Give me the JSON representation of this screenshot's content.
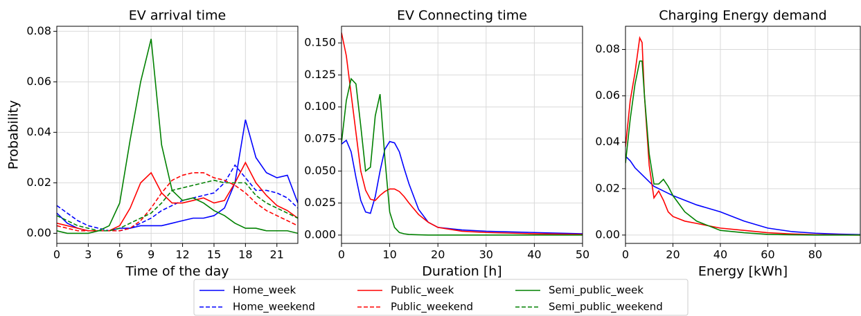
{
  "chart_data": [
    {
      "type": "line",
      "title": "EV arrival time",
      "xlabel": "Time of the day",
      "ylabel": "Probability",
      "grid": true,
      "legend": "bottom",
      "x": [
        0,
        1,
        2,
        3,
        4,
        5,
        6,
        7,
        8,
        9,
        10,
        11,
        12,
        13,
        14,
        15,
        16,
        17,
        18,
        19,
        20,
        21,
        22,
        23
      ],
      "xlim": [
        0,
        23
      ],
      "xticks": [
        0,
        3,
        6,
        9,
        12,
        15,
        18,
        21
      ],
      "ylim": [
        -0.004,
        0.082
      ],
      "yticks": [
        {
          "value": 0,
          "label": "0.00"
        },
        {
          "value": 0.02,
          "label": "0.02"
        },
        {
          "value": 0.04,
          "label": "0.04"
        },
        {
          "value": 0.06,
          "label": "0.06"
        },
        {
          "value": 0.08,
          "label": "0.08"
        }
      ],
      "series": [
        {
          "name": "Home_week",
          "color": "#0000ff",
          "dash": false,
          "values": [
            0.008,
            0.004,
            0.002,
            0.001,
            0.001,
            0.001,
            0.002,
            0.002,
            0.003,
            0.003,
            0.003,
            0.004,
            0.005,
            0.006,
            0.006,
            0.007,
            0.01,
            0.02,
            0.045,
            0.03,
            0.024,
            0.022,
            0.023,
            0.012
          ]
        },
        {
          "name": "Home_weekend",
          "color": "#0000ff",
          "dash": true,
          "values": [
            0.011,
            0.008,
            0.005,
            0.003,
            0.002,
            0.001,
            0.001,
            0.002,
            0.004,
            0.006,
            0.009,
            0.011,
            0.013,
            0.014,
            0.015,
            0.016,
            0.02,
            0.027,
            0.022,
            0.017,
            0.017,
            0.016,
            0.014,
            0.01
          ]
        },
        {
          "name": "Public_week",
          "color": "#ff0000",
          "dash": false,
          "values": [
            0.004,
            0.003,
            0.002,
            0.001,
            0.001,
            0.001,
            0.003,
            0.01,
            0.02,
            0.024,
            0.016,
            0.012,
            0.012,
            0.013,
            0.014,
            0.012,
            0.013,
            0.02,
            0.028,
            0.02,
            0.015,
            0.011,
            0.009,
            0.006
          ]
        },
        {
          "name": "Public_weekend",
          "color": "#ff0000",
          "dash": true,
          "values": [
            0.003,
            0.002,
            0.001,
            0.001,
            0.001,
            0.001,
            0.001,
            0.002,
            0.005,
            0.01,
            0.016,
            0.021,
            0.023,
            0.024,
            0.024,
            0.022,
            0.021,
            0.019,
            0.016,
            0.012,
            0.009,
            0.007,
            0.005,
            0.003
          ]
        },
        {
          "name": "Semi_public_week",
          "color": "#008000",
          "dash": false,
          "values": [
            0.001,
            0,
            0,
            0,
            0.001,
            0.003,
            0.012,
            0.037,
            0.06,
            0.077,
            0.035,
            0.017,
            0.013,
            0.014,
            0.012,
            0.009,
            0.007,
            0.004,
            0.002,
            0.002,
            0.001,
            0.001,
            0.001,
            0
          ]
        },
        {
          "name": "Semi_public_weekend",
          "color": "#008000",
          "dash": true,
          "values": [
            0.007,
            0.005,
            0.003,
            0.002,
            0.001,
            0.001,
            0.002,
            0.004,
            0.006,
            0.008,
            0.012,
            0.017,
            0.018,
            0.019,
            0.02,
            0.021,
            0.02,
            0.02,
            0.02,
            0.015,
            0.012,
            0.01,
            0.008,
            0.006
          ]
        }
      ]
    },
    {
      "type": "line",
      "title": "EV Connecting time",
      "xlabel": "Duration [h]",
      "grid": true,
      "x": [
        0,
        1,
        2,
        3,
        4,
        5,
        6,
        7,
        8,
        9,
        10,
        11,
        12,
        13,
        14,
        16,
        18,
        20,
        25,
        30,
        40,
        50
      ],
      "xlim": [
        0,
        50
      ],
      "xticks": [
        0,
        10,
        20,
        30,
        40,
        50
      ],
      "ylim": [
        -0.0065,
        0.163
      ],
      "yticks": [
        {
          "value": 0,
          "label": "0.000"
        },
        {
          "value": 0.025,
          "label": "0.025"
        },
        {
          "value": 0.05,
          "label": "0.050"
        },
        {
          "value": 0.075,
          "label": "0.075"
        },
        {
          "value": 0.1,
          "label": "0.100"
        },
        {
          "value": 0.125,
          "label": "0.125"
        },
        {
          "value": 0.15,
          "label": "0.150"
        }
      ],
      "series": [
        {
          "color": "#0000ff",
          "dash": false,
          "values": [
            0.071,
            0.074,
            0.065,
            0.045,
            0.027,
            0.018,
            0.017,
            0.03,
            0.05,
            0.067,
            0.073,
            0.072,
            0.065,
            0.052,
            0.04,
            0.02,
            0.01,
            0.006,
            0.004,
            0.003,
            0.002,
            0.001
          ]
        },
        {
          "color": "#ff0000",
          "dash": false,
          "values": [
            0.158,
            0.14,
            0.11,
            0.08,
            0.05,
            0.035,
            0.028,
            0.027,
            0.031,
            0.034,
            0.036,
            0.036,
            0.034,
            0.03,
            0.025,
            0.016,
            0.01,
            0.006,
            0.003,
            0.002,
            0.001,
            0.0005
          ]
        },
        {
          "color": "#008000",
          "dash": false,
          "values": [
            0.072,
            0.105,
            0.122,
            0.118,
            0.085,
            0.05,
            0.053,
            0.093,
            0.11,
            0.06,
            0.018,
            0.006,
            0.002,
            0.001,
            0.0005,
            0.0002,
            0,
            0,
            0,
            0,
            0,
            0
          ]
        }
      ]
    },
    {
      "type": "line",
      "title": "Charging Energy demand",
      "xlabel": "Energy [kWh]",
      "grid": true,
      "x": [
        0,
        2,
        4,
        6,
        7,
        8,
        10,
        12,
        14,
        16,
        18,
        20,
        25,
        30,
        40,
        50,
        60,
        70,
        80,
        90,
        99
      ],
      "xlim": [
        0,
        99
      ],
      "xticks": [
        0,
        20,
        40,
        60,
        80
      ],
      "ylim": [
        -0.0036,
        0.09
      ],
      "yticks": [
        {
          "value": 0,
          "label": "0.00"
        },
        {
          "value": 0.02,
          "label": "0.02"
        },
        {
          "value": 0.04,
          "label": "0.04"
        },
        {
          "value": 0.06,
          "label": "0.06"
        },
        {
          "value": 0.08,
          "label": "0.08"
        }
      ],
      "series": [
        {
          "color": "#0000ff",
          "dash": false,
          "values": [
            0.034,
            0.032,
            0.029,
            0.027,
            0.026,
            0.025,
            0.023,
            0.021,
            0.02,
            0.019,
            0.018,
            0.017,
            0.015,
            0.013,
            0.01,
            0.006,
            0.003,
            0.0015,
            0.0008,
            0.0004,
            0.0002
          ]
        },
        {
          "color": "#ff0000",
          "dash": false,
          "values": [
            0.038,
            0.058,
            0.07,
            0.085,
            0.083,
            0.06,
            0.03,
            0.016,
            0.019,
            0.015,
            0.01,
            0.008,
            0.006,
            0.005,
            0.003,
            0.002,
            0.001,
            0.0005,
            0.0002,
            0.0001,
            0
          ]
        },
        {
          "color": "#008000",
          "dash": false,
          "values": [
            0.031,
            0.05,
            0.065,
            0.075,
            0.075,
            0.06,
            0.035,
            0.022,
            0.022,
            0.024,
            0.021,
            0.017,
            0.01,
            0.006,
            0.002,
            0.001,
            0.0003,
            0.0001,
            0,
            0,
            0
          ]
        }
      ]
    }
  ]
}
